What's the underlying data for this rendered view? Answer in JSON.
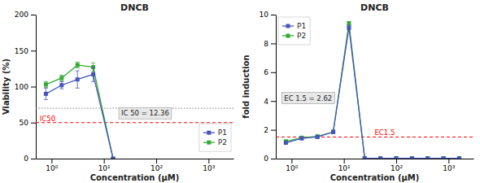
{
  "chart_data": [
    {
      "type": "line",
      "title": "DNCB",
      "x_label": "Concentration (μM)",
      "y_label": "Viability (%)",
      "log": "x",
      "grid": false,
      "legend": "lower right",
      "xlim": [
        0.5,
        3000
      ],
      "xticks": [
        {
          "value": 1,
          "label": "10⁰"
        },
        {
          "value": 10,
          "label": "10¹"
        },
        {
          "value": 100,
          "label": "10²"
        },
        {
          "value": 1000,
          "label": "10³"
        }
      ],
      "ylim": [
        0,
        200
      ],
      "yticks": [
        0,
        50,
        100,
        150,
        200
      ],
      "x": [
        0.78,
        1.56,
        3.13,
        6.25,
        15
      ],
      "series": [
        {
          "name": "P1",
          "color": "#4455bb",
          "marker": "square",
          "values": [
            90,
            102,
            110,
            117,
            0
          ],
          "yerr": [
            8,
            5,
            12,
            10,
            null
          ]
        },
        {
          "name": "P2",
          "color": "#33aa33",
          "marker": "square",
          "values": [
            103,
            112,
            130,
            127,
            0
          ],
          "yerr": [
            4,
            4,
            4,
            6,
            null
          ]
        }
      ],
      "hlines": [
        {
          "value": 70,
          "color": "gray",
          "line_style": "dotted"
        },
        {
          "value": 50,
          "color": "red",
          "line_style": "dashed",
          "label": "IC50"
        }
      ],
      "annotation": "IC 50 = 12.36"
    },
    {
      "type": "line",
      "title": "DNCB",
      "x_label": "Concentration (μM)",
      "y_label": "fold induction",
      "log": "x",
      "grid": false,
      "legend": "upper left",
      "xlim": [
        0.5,
        3000
      ],
      "xticks": [
        {
          "value": 1,
          "label": "10⁰"
        },
        {
          "value": 10,
          "label": "10¹"
        },
        {
          "value": 100,
          "label": "10²"
        },
        {
          "value": 1000,
          "label": "10³"
        }
      ],
      "ylim": [
        0,
        10
      ],
      "yticks": [
        0,
        2,
        4,
        6,
        8,
        10
      ],
      "x": [
        0.78,
        1.56,
        3.13,
        6.25,
        12.5,
        25,
        50,
        100,
        200,
        400,
        800,
        1600
      ],
      "series": [
        {
          "name": "P1",
          "color": "#4455bb",
          "marker": "square",
          "values": [
            1.1,
            1.4,
            1.5,
            1.85,
            9.1,
            0.02,
            0.02,
            0.02,
            0.02,
            0.02,
            0.02,
            0.02
          ],
          "yerr": [
            0.04,
            0.04,
            0.04,
            0.12,
            0.15,
            0,
            0,
            0,
            0,
            0,
            0,
            0
          ]
        },
        {
          "name": "P2",
          "color": "#33aa33",
          "marker": "square",
          "values": [
            1.2,
            1.45,
            1.55,
            1.85,
            9.4,
            0.02,
            0.02,
            0.02,
            0.02,
            0.02,
            0.02,
            0.02
          ],
          "yerr": [
            0.04,
            0.04,
            0.04,
            0.08,
            0.12,
            0,
            0,
            0,
            0,
            0,
            0,
            0
          ]
        }
      ],
      "hlines": [
        {
          "value": 1.5,
          "color": "red",
          "line_style": "dashed",
          "label": "EC1.5"
        }
      ],
      "annotation": "EC 1.5 = 2.62"
    }
  ]
}
